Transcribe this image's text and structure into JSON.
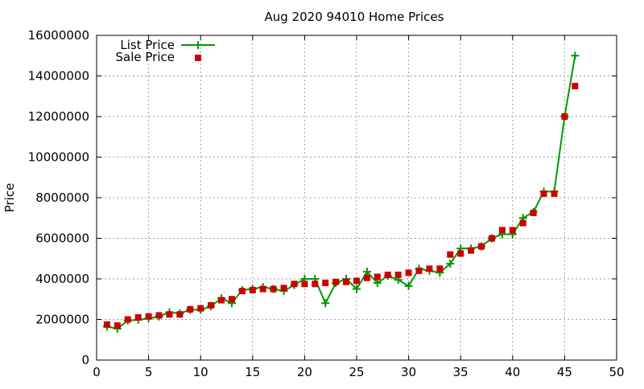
{
  "chart_data": {
    "type": "line",
    "title": "Aug 2020 94010 Home Prices",
    "xlabel": "",
    "ylabel": "Price",
    "xlim": [
      0,
      50
    ],
    "ylim": [
      0,
      16000000
    ],
    "xticks": [
      0,
      5,
      10,
      15,
      20,
      25,
      30,
      35,
      40,
      45,
      50
    ],
    "yticks": [
      0,
      2000000,
      4000000,
      6000000,
      8000000,
      10000000,
      12000000,
      14000000,
      16000000
    ],
    "xtick_labels": [
      "0",
      "5",
      "10",
      "15",
      "20",
      "25",
      "30",
      "35",
      "40",
      "45",
      "50"
    ],
    "ytick_labels": [
      "0",
      "2000000",
      "4000000",
      "6000000",
      "8000000",
      "10000000",
      "12000000",
      "14000000",
      "16000000"
    ],
    "grid": true,
    "legend_position": "top-left",
    "x": [
      1,
      2,
      3,
      4,
      5,
      6,
      7,
      8,
      9,
      10,
      11,
      12,
      13,
      14,
      15,
      16,
      17,
      18,
      19,
      20,
      21,
      22,
      23,
      24,
      25,
      26,
      27,
      28,
      29,
      30,
      31,
      32,
      33,
      34,
      35,
      36,
      37,
      38,
      39,
      40,
      41,
      42,
      43,
      44,
      45,
      46
    ],
    "series": [
      {
        "name": "List Price",
        "style": "line-cross",
        "color": "#009900",
        "values": [
          1650000,
          1550000,
          1950000,
          1980000,
          2050000,
          2150000,
          2350000,
          2300000,
          2480000,
          2480000,
          2650000,
          3050000,
          2800000,
          3450000,
          3500000,
          3600000,
          3500000,
          3400000,
          3700000,
          4000000,
          4000000,
          2800000,
          3800000,
          4000000,
          3500000,
          4350000,
          3800000,
          4150000,
          3950000,
          3650000,
          4500000,
          4400000,
          4300000,
          4750000,
          5500000,
          5500000,
          5600000,
          6000000,
          6200000,
          6200000,
          7000000,
          7300000,
          8300000,
          8300000,
          12000000,
          15000000
        ]
      },
      {
        "name": "Sale Price",
        "style": "square",
        "color": "#cc0000",
        "values": [
          1750000,
          1700000,
          2000000,
          2100000,
          2150000,
          2200000,
          2250000,
          2250000,
          2500000,
          2550000,
          2700000,
          2950000,
          3000000,
          3400000,
          3450000,
          3500000,
          3500000,
          3550000,
          3750000,
          3750000,
          3750000,
          3800000,
          3850000,
          3850000,
          3900000,
          4050000,
          4100000,
          4200000,
          4200000,
          4300000,
          4400000,
          4500000,
          4500000,
          5200000,
          5250000,
          5400000,
          5600000,
          6000000,
          6400000,
          6400000,
          6750000,
          7250000,
          8200000,
          8200000,
          12000000,
          13500000
        ]
      }
    ]
  }
}
